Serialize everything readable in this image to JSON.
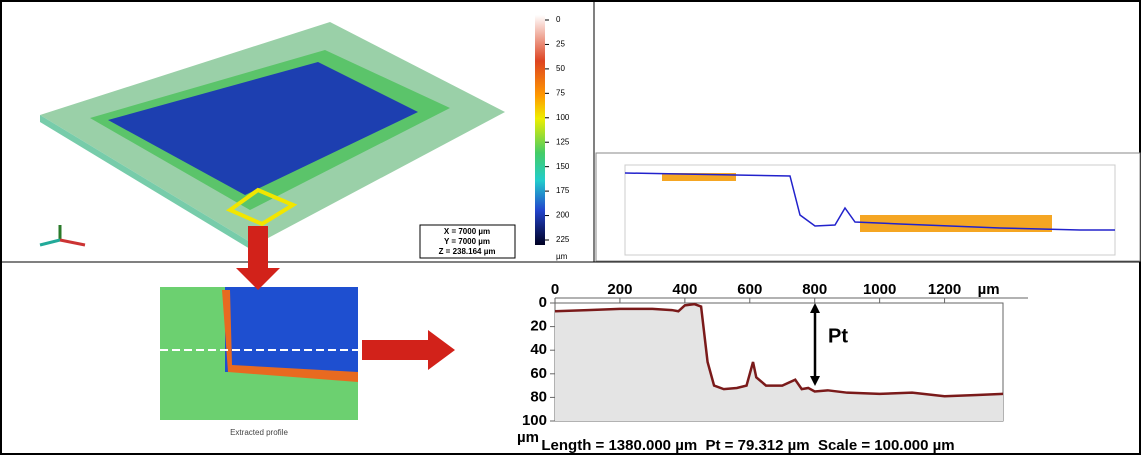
{
  "colorbar": {
    "ticks": [
      0,
      25,
      50,
      75,
      100,
      125,
      150,
      175,
      200,
      225
    ],
    "unit": "µm"
  },
  "surface_info": {
    "x": "X = 7000 µm",
    "y": "Y = 7000 µm",
    "z": "Z = 238.164 µm"
  },
  "caption": "Extracted profile",
  "chart_data": {
    "type": "line",
    "annotation": "Pt",
    "footer": "Length = 1380.000 µm  Pt = 79.312 µm  Scale = 100.000 µm",
    "x_unit": "µm",
    "y_unit": "µm",
    "y_inverted": true,
    "xlim": [
      0,
      1380
    ],
    "ylim": [
      0,
      100
    ],
    "xticks": [
      0,
      200,
      400,
      600,
      800,
      1000,
      1200
    ],
    "yticks": [
      0,
      20,
      40,
      60,
      80,
      100
    ],
    "x": [
      0,
      100,
      200,
      300,
      360,
      380,
      400,
      430,
      450,
      470,
      490,
      520,
      560,
      590,
      600,
      610,
      620,
      650,
      700,
      740,
      760,
      780,
      800,
      840,
      900,
      1000,
      1100,
      1200,
      1300,
      1380
    ],
    "series": [
      {
        "color": "#7a1a1a",
        "values": [
          7,
          6,
          5,
          5,
          6,
          7,
          2,
          1,
          3,
          50,
          70,
          73,
          72,
          70,
          60,
          50,
          63,
          70,
          70,
          65,
          73,
          72,
          75,
          74,
          76,
          77,
          76,
          79,
          78,
          77
        ]
      }
    ]
  }
}
